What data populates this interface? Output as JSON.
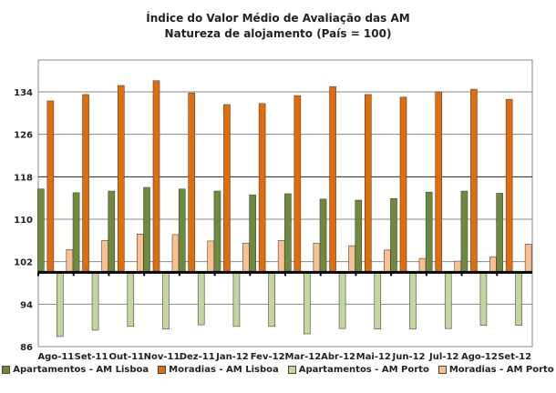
{
  "chart_data": {
    "type": "bar",
    "title": "Índice do Valor Médio de Avaliação das AM",
    "subtitle": "Natureza de alojamento (País = 100)",
    "categories": [
      "Ago-11",
      "Set-11",
      "Out-11",
      "Nov-11",
      "Dez-11",
      "Jan-12",
      "Fev-12",
      "Mar-12",
      "Abr-12",
      "Mai-12",
      "Jun-12",
      "Jul-12",
      "Ago-12",
      "Set-12"
    ],
    "baseline": 100,
    "ylim": [
      86,
      140
    ],
    "yticks": [
      86,
      94,
      102,
      110,
      118,
      126,
      134
    ],
    "grid": true,
    "legend_position": "bottom",
    "series": [
      {
        "name": "Apartamentos - AM Lisboa",
        "color": "#6e8b3d",
        "values": [
          115.7,
          115.0,
          115.3,
          116.0,
          115.7,
          115.3,
          114.6,
          114.8,
          113.8,
          113.6,
          113.9,
          115.1,
          115.3,
          114.9
        ]
      },
      {
        "name": "Moradias - AM Lisboa",
        "color": "#e36c0a",
        "values": [
          132.3,
          133.5,
          135.2,
          136.1,
          133.8,
          131.6,
          131.8,
          133.3,
          135.0,
          133.5,
          133.0,
          134.0,
          134.5,
          132.6
        ]
      },
      {
        "name": "Apartamentos - AM Porto",
        "color": "#c3d69b",
        "values": [
          87.9,
          89.1,
          89.8,
          89.3,
          90.1,
          89.8,
          89.8,
          88.4,
          89.4,
          89.3,
          89.3,
          89.4,
          90.0,
          90.0
        ]
      },
      {
        "name": "Moradias - AM Porto",
        "color": "#fac090",
        "values": [
          104.3,
          106.0,
          107.2,
          107.1,
          105.9,
          105.5,
          106.0,
          105.5,
          105.0,
          104.2,
          102.6,
          102.1,
          102.9,
          105.3
        ]
      }
    ]
  }
}
